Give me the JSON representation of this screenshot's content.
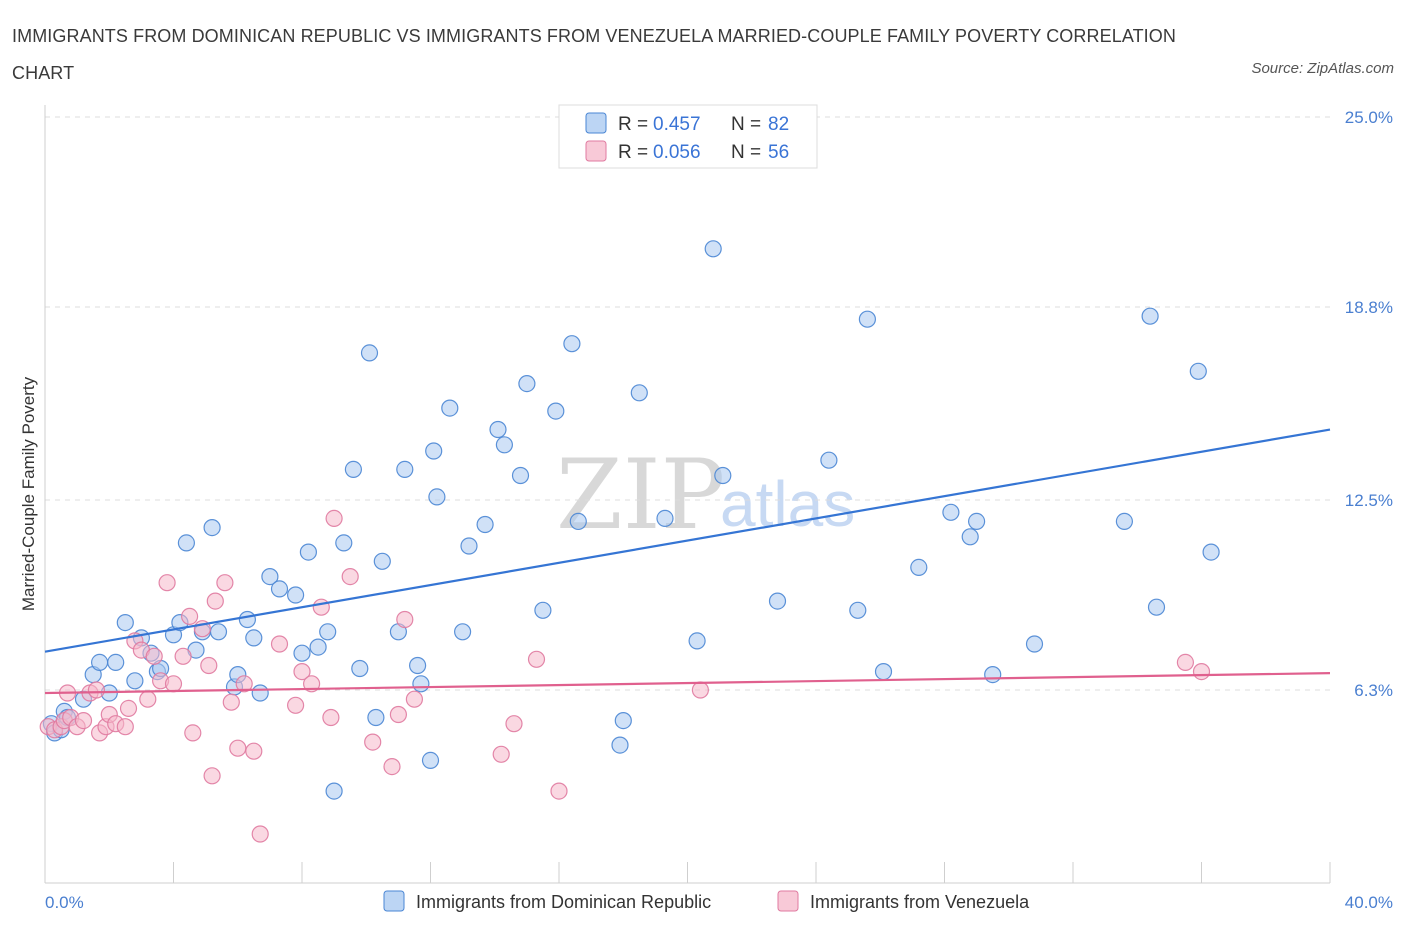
{
  "header": {
    "title": "IMMIGRANTS FROM DOMINICAN REPUBLIC VS IMMIGRANTS FROM VENEZUELA MARRIED-COUPLE FAMILY POVERTY CORRELATION CHART",
    "source": "Source: ZipAtlas.com"
  },
  "watermark": {
    "zip": "ZIP",
    "atlas": "atlas"
  },
  "colors": {
    "blue_fill": "#a9c8f0",
    "blue_stroke": "#4a86d4",
    "blue_line": "#3575d4",
    "pink_fill": "#f5b8cb",
    "pink_stroke": "#e07aa0",
    "pink_line": "#e0608e",
    "tick_text": "#4a7fd0",
    "grid": "#dcdcdc"
  },
  "legend": {
    "row1": {
      "r_label": "R =",
      "r_value": "0.457",
      "n_label": "N =",
      "n_value": "82"
    },
    "row2": {
      "r_label": "R =",
      "r_value": "0.056",
      "n_label": "N =",
      "n_value": "56"
    }
  },
  "chart_data": {
    "type": "scatter",
    "title": "IMMIGRANTS FROM DOMINICAN REPUBLIC VS IMMIGRANTS FROM VENEZUELA MARRIED-COUPLE FAMILY POVERTY CORRELATION CHART",
    "xlabel": "",
    "ylabel": "Married-Couple Family Poverty",
    "xlim": [
      0,
      40
    ],
    "ylim": [
      0,
      25.0
    ],
    "x_tick_labels": [
      "0.0%",
      "40.0%"
    ],
    "y_ticks": [
      6.3,
      12.5,
      18.8,
      25.0
    ],
    "y_tick_labels": [
      "6.3%",
      "12.5%",
      "18.8%",
      "25.0%"
    ],
    "grid": true,
    "legend_position": "top-center",
    "series": [
      {
        "name": "Immigrants from Dominican Republic",
        "color": "#4a86d4",
        "R": 0.457,
        "N": 82,
        "trend": {
          "x": [
            0,
            40
          ],
          "y": [
            7.55,
            14.8
          ]
        },
        "points": [
          [
            0.2,
            5.2
          ],
          [
            0.3,
            4.9
          ],
          [
            0.5,
            5.0
          ],
          [
            0.6,
            5.6
          ],
          [
            0.7,
            5.4
          ],
          [
            1.2,
            6.0
          ],
          [
            1.5,
            6.8
          ],
          [
            1.7,
            7.2
          ],
          [
            2.0,
            6.2
          ],
          [
            2.2,
            7.2
          ],
          [
            2.5,
            8.5
          ],
          [
            2.8,
            6.6
          ],
          [
            3.0,
            8.0
          ],
          [
            3.3,
            7.5
          ],
          [
            3.5,
            6.9
          ],
          [
            3.6,
            7.0
          ],
          [
            4.0,
            8.1
          ],
          [
            4.2,
            8.5
          ],
          [
            4.4,
            11.1
          ],
          [
            4.7,
            7.6
          ],
          [
            4.9,
            8.2
          ],
          [
            5.2,
            11.6
          ],
          [
            5.4,
            8.2
          ],
          [
            5.9,
            6.4
          ],
          [
            6.0,
            6.8
          ],
          [
            6.3,
            8.6
          ],
          [
            6.5,
            8.0
          ],
          [
            6.7,
            6.2
          ],
          [
            7.0,
            10.0
          ],
          [
            7.3,
            9.6
          ],
          [
            7.8,
            9.4
          ],
          [
            8.0,
            7.5
          ],
          [
            8.2,
            10.8
          ],
          [
            8.5,
            7.7
          ],
          [
            8.8,
            8.2
          ],
          [
            9.0,
            3.0
          ],
          [
            9.3,
            11.1
          ],
          [
            9.6,
            13.5
          ],
          [
            9.8,
            7.0
          ],
          [
            10.1,
            17.3
          ],
          [
            10.3,
            5.4
          ],
          [
            10.5,
            10.5
          ],
          [
            11.0,
            8.2
          ],
          [
            11.2,
            13.5
          ],
          [
            11.6,
            7.1
          ],
          [
            11.7,
            6.5
          ],
          [
            12.0,
            4.0
          ],
          [
            12.1,
            14.1
          ],
          [
            12.2,
            12.6
          ],
          [
            12.6,
            15.5
          ],
          [
            13.0,
            8.2
          ],
          [
            13.2,
            11.0
          ],
          [
            13.7,
            11.7
          ],
          [
            14.1,
            14.8
          ],
          [
            14.3,
            14.3
          ],
          [
            14.8,
            13.3
          ],
          [
            15.0,
            16.3
          ],
          [
            15.5,
            8.9
          ],
          [
            15.9,
            15.4
          ],
          [
            16.4,
            17.6
          ],
          [
            16.6,
            11.8
          ],
          [
            17.9,
            4.5
          ],
          [
            18.0,
            5.3
          ],
          [
            18.5,
            16.0
          ],
          [
            19.3,
            11.9
          ],
          [
            20.3,
            7.9
          ],
          [
            20.8,
            20.7
          ],
          [
            21.1,
            13.3
          ],
          [
            22.8,
            9.2
          ],
          [
            24.4,
            13.8
          ],
          [
            25.3,
            8.9
          ],
          [
            25.6,
            18.4
          ],
          [
            26.1,
            6.9
          ],
          [
            27.2,
            10.3
          ],
          [
            28.2,
            12.1
          ],
          [
            28.8,
            11.3
          ],
          [
            29.0,
            11.8
          ],
          [
            29.5,
            6.8
          ],
          [
            30.8,
            7.8
          ],
          [
            33.6,
            11.8
          ],
          [
            34.4,
            18.5
          ],
          [
            34.6,
            9.0
          ],
          [
            35.9,
            16.7
          ],
          [
            36.3,
            10.8
          ]
        ]
      },
      {
        "name": "Immigrants from Venezuela",
        "color": "#e07aa0",
        "R": 0.056,
        "N": 56,
        "trend": {
          "x": [
            0,
            40
          ],
          "y": [
            6.2,
            6.85
          ]
        },
        "points": [
          [
            0.1,
            5.1
          ],
          [
            0.3,
            5.0
          ],
          [
            0.5,
            5.1
          ],
          [
            0.6,
            5.3
          ],
          [
            0.7,
            6.2
          ],
          [
            0.8,
            5.4
          ],
          [
            1.0,
            5.1
          ],
          [
            1.2,
            5.3
          ],
          [
            1.4,
            6.2
          ],
          [
            1.6,
            6.3
          ],
          [
            1.7,
            4.9
          ],
          [
            1.9,
            5.1
          ],
          [
            2.0,
            5.5
          ],
          [
            2.2,
            5.2
          ],
          [
            2.5,
            5.1
          ],
          [
            2.6,
            5.7
          ],
          [
            2.8,
            7.9
          ],
          [
            3.0,
            7.6
          ],
          [
            3.2,
            6.0
          ],
          [
            3.4,
            7.4
          ],
          [
            3.6,
            6.6
          ],
          [
            3.8,
            9.8
          ],
          [
            4.0,
            6.5
          ],
          [
            4.3,
            7.4
          ],
          [
            4.5,
            8.7
          ],
          [
            4.6,
            4.9
          ],
          [
            4.9,
            8.3
          ],
          [
            5.1,
            7.1
          ],
          [
            5.2,
            3.5
          ],
          [
            5.3,
            9.2
          ],
          [
            5.6,
            9.8
          ],
          [
            5.8,
            5.9
          ],
          [
            6.0,
            4.4
          ],
          [
            6.2,
            6.5
          ],
          [
            6.5,
            4.3
          ],
          [
            6.7,
            1.6
          ],
          [
            7.3,
            7.8
          ],
          [
            7.8,
            5.8
          ],
          [
            8.0,
            6.9
          ],
          [
            8.3,
            6.5
          ],
          [
            8.6,
            9.0
          ],
          [
            8.9,
            5.4
          ],
          [
            9.0,
            11.9
          ],
          [
            9.5,
            10.0
          ],
          [
            10.2,
            4.6
          ],
          [
            10.8,
            3.8
          ],
          [
            11.0,
            5.5
          ],
          [
            11.2,
            8.6
          ],
          [
            11.5,
            6.0
          ],
          [
            14.2,
            4.2
          ],
          [
            14.6,
            5.2
          ],
          [
            15.3,
            7.3
          ],
          [
            16.0,
            3.0
          ],
          [
            20.4,
            6.3
          ],
          [
            35.5,
            7.2
          ],
          [
            36.0,
            6.9
          ]
        ]
      }
    ]
  },
  "bottom_legend": {
    "item1": "Immigrants from Dominican Republic",
    "item2": "Immigrants from Venezuela"
  }
}
